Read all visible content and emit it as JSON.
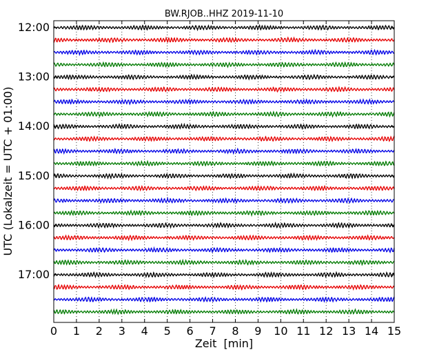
{
  "chart_data": {
    "type": "line",
    "title": "BW.RJOB..HHZ 2019-11-10",
    "xlabel": "Zeit  [min]",
    "ylabel": "UTC (Lokalzeit = UTC + 01:00)",
    "xlim": [
      0,
      15
    ],
    "x_ticks": [
      "0",
      "1",
      "2",
      "3",
      "4",
      "5",
      "6",
      "7",
      "8",
      "9",
      "10",
      "11",
      "12",
      "13",
      "14",
      "15"
    ],
    "y_ticks": [
      "12:00",
      "13:00",
      "14:00",
      "15:00",
      "16:00",
      "17:00"
    ],
    "grid": "vertical dotted lines at each minute",
    "trace_interval_minutes": 15,
    "trace_colors": [
      "#000000",
      "#e60000",
      "#0000e6",
      "#007a00"
    ],
    "traces": [
      {
        "start": "12:00"
      },
      {
        "start": "12:15"
      },
      {
        "start": "12:30"
      },
      {
        "start": "12:45"
      },
      {
        "start": "13:00"
      },
      {
        "start": "13:15"
      },
      {
        "start": "13:30"
      },
      {
        "start": "13:45"
      },
      {
        "start": "14:00"
      },
      {
        "start": "14:15"
      },
      {
        "start": "14:30"
      },
      {
        "start": "14:45"
      },
      {
        "start": "15:00"
      },
      {
        "start": "15:15"
      },
      {
        "start": "15:30"
      },
      {
        "start": "15:45"
      },
      {
        "start": "16:00"
      },
      {
        "start": "16:15"
      },
      {
        "start": "16:30"
      },
      {
        "start": "16:45"
      },
      {
        "start": "17:00"
      },
      {
        "start": "17:15"
      },
      {
        "start": "17:30"
      },
      {
        "start": "17:45"
      }
    ]
  }
}
